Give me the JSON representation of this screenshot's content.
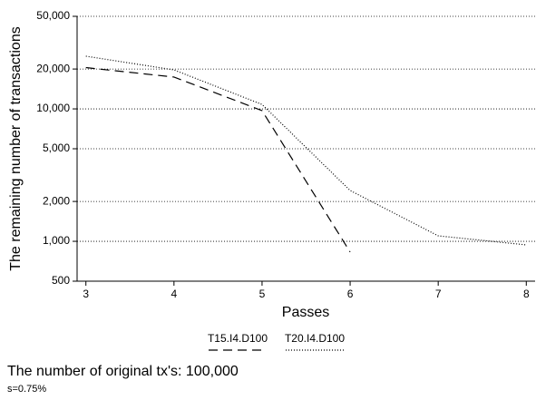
{
  "chart_data": {
    "type": "line",
    "x_label": "Passes",
    "y_label": "The remaining number of transactions",
    "x": [
      3,
      4,
      5,
      6,
      7,
      8
    ],
    "series": [
      {
        "name": "T15.I4.D100",
        "color": "#000000",
        "dash": "dashed",
        "values": [
          20500,
          17400,
          9700,
          830,
          null,
          null
        ]
      },
      {
        "name": "T20.I4.D100",
        "color": "#000000",
        "dash": "dotted",
        "values": [
          25000,
          19700,
          10800,
          2420,
          1100,
          940
        ]
      }
    ],
    "xlim": [
      2.9,
      8.1
    ],
    "xticks": [
      3,
      4,
      5,
      6,
      7,
      8
    ],
    "ylim": [
      500,
      50000
    ],
    "log_y": true,
    "grid": true,
    "yticks": [
      {
        "value": 500,
        "label": "500"
      },
      {
        "value": 1000,
        "label": "1,000"
      },
      {
        "value": 2000,
        "label": "2,000"
      },
      {
        "value": 5000,
        "label": "5,000"
      },
      {
        "value": 10000,
        "label": "10,000"
      },
      {
        "value": 20000,
        "label": "20,000"
      },
      {
        "value": 50000,
        "label": "50,000"
      }
    ],
    "legend": "bottom",
    "annotations": [
      "The number of original tx's: 100,000",
      "s=0.75%"
    ]
  }
}
